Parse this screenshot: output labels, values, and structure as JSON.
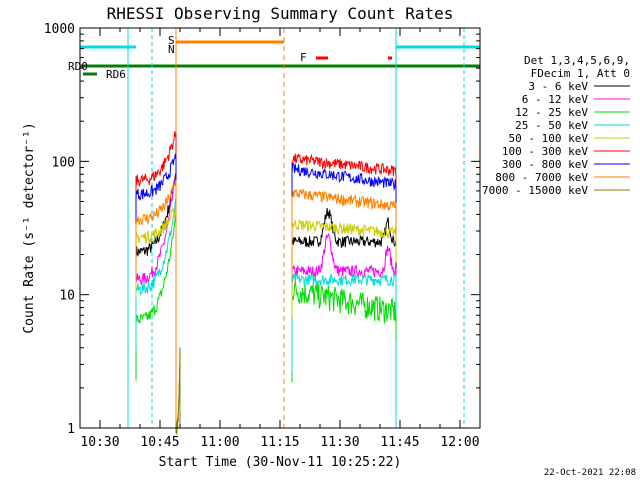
{
  "chart_data": {
    "type": "line",
    "title": "RHESSI Observing Summary Count Rates",
    "xlabel": "Start Time (30-Nov-11 10:25:22)",
    "ylabel": "Count Rate (s⁻¹ detector⁻¹)",
    "yscale": "log",
    "xlim": [
      "10:25",
      "12:05"
    ],
    "ylim": [
      1,
      1000
    ],
    "x_ticks": [
      "10:30",
      "10:45",
      "11:00",
      "11:15",
      "11:30",
      "11:45",
      "12:00"
    ],
    "y_ticks": [
      "1",
      "10",
      "100",
      "1000"
    ],
    "legend_header": [
      "Det 1,3,4,5,6,9,",
      "FDecim 1, Att 0"
    ],
    "legend_position": "right",
    "series": [
      {
        "name": "3 - 6 keV",
        "color": "#000000",
        "gap1": {
          "start": "10:39",
          "end": "10:49",
          "from": 21,
          "to": 85,
          "peak": null
        },
        "gap2": {
          "start": "11:18",
          "end": "11:44",
          "level": 25,
          "bump_at": "11:27",
          "bump_to": 42
        }
      },
      {
        "name": "6 - 12 keV",
        "color": "#ff00ff",
        "gap1": {
          "start": "10:39",
          "end": "10:49",
          "from": 13,
          "to": 85
        },
        "gap2": {
          "start": "11:18",
          "end": "11:44",
          "level": 15,
          "bump_at": "11:27",
          "bump_to": 27
        }
      },
      {
        "name": "12 - 25 keV",
        "color": "#00dd00",
        "gap1": {
          "start": "10:39",
          "end": "10:49",
          "from": 6.5,
          "to": 40
        },
        "gap2": {
          "start": "11:18",
          "end": "11:44",
          "from": 11,
          "to": 7.5
        }
      },
      {
        "name": "25 - 50 keV",
        "color": "#00dddd",
        "gap1": {
          "start": "10:39",
          "end": "10:49",
          "from": 11,
          "to": 50
        },
        "gap2": {
          "start": "11:18",
          "end": "11:44",
          "level": 13
        }
      },
      {
        "name": "50 - 100 keV",
        "color": "#cccc00",
        "gap1": {
          "start": "10:39",
          "end": "10:49",
          "from": 27,
          "to": 45
        },
        "gap2": {
          "start": "11:18",
          "end": "11:44",
          "from": 34,
          "to": 29
        }
      },
      {
        "name": "100 - 300 keV",
        "color": "#ff0000",
        "gap1": {
          "start": "10:39",
          "end": "10:49",
          "from": 72,
          "to": 165
        },
        "gap2": {
          "start": "11:18",
          "end": "11:44",
          "from": 105,
          "to": 85
        }
      },
      {
        "name": "300 - 800 keV",
        "color": "#0000ff",
        "gap1": {
          "start": "10:39",
          "end": "10:49",
          "from": 57,
          "to": 110
        },
        "gap2": {
          "start": "11:18",
          "end": "11:44",
          "from": 88,
          "to": 67
        }
      },
      {
        "name": "800 - 7000 keV",
        "color": "#ff8000",
        "gap1": {
          "start": "10:39",
          "end": "10:49",
          "from": 37,
          "to": 70
        },
        "gap2": {
          "start": "11:18",
          "end": "11:44",
          "from": 58,
          "to": 46
        }
      },
      {
        "name": "7000 - 15000 keV",
        "color": "#808000",
        "gap1": {
          "start": "10:49",
          "end": "10:50",
          "from": 1,
          "to": 4
        },
        "gap2": null
      }
    ],
    "flags": {
      "SAA": {
        "label": "S",
        "color": "#ff8000"
      },
      "NIGHT": {
        "label": "N",
        "color": "#00dddd"
      },
      "FLARE": {
        "label": "F",
        "color": "#ff0000"
      },
      "RD0": {
        "label": "RD0",
        "color": "#008000"
      },
      "RD6": {
        "label": "RD6",
        "color": "#008000"
      }
    },
    "timestamp": "22-Oct-2021 22:08"
  }
}
